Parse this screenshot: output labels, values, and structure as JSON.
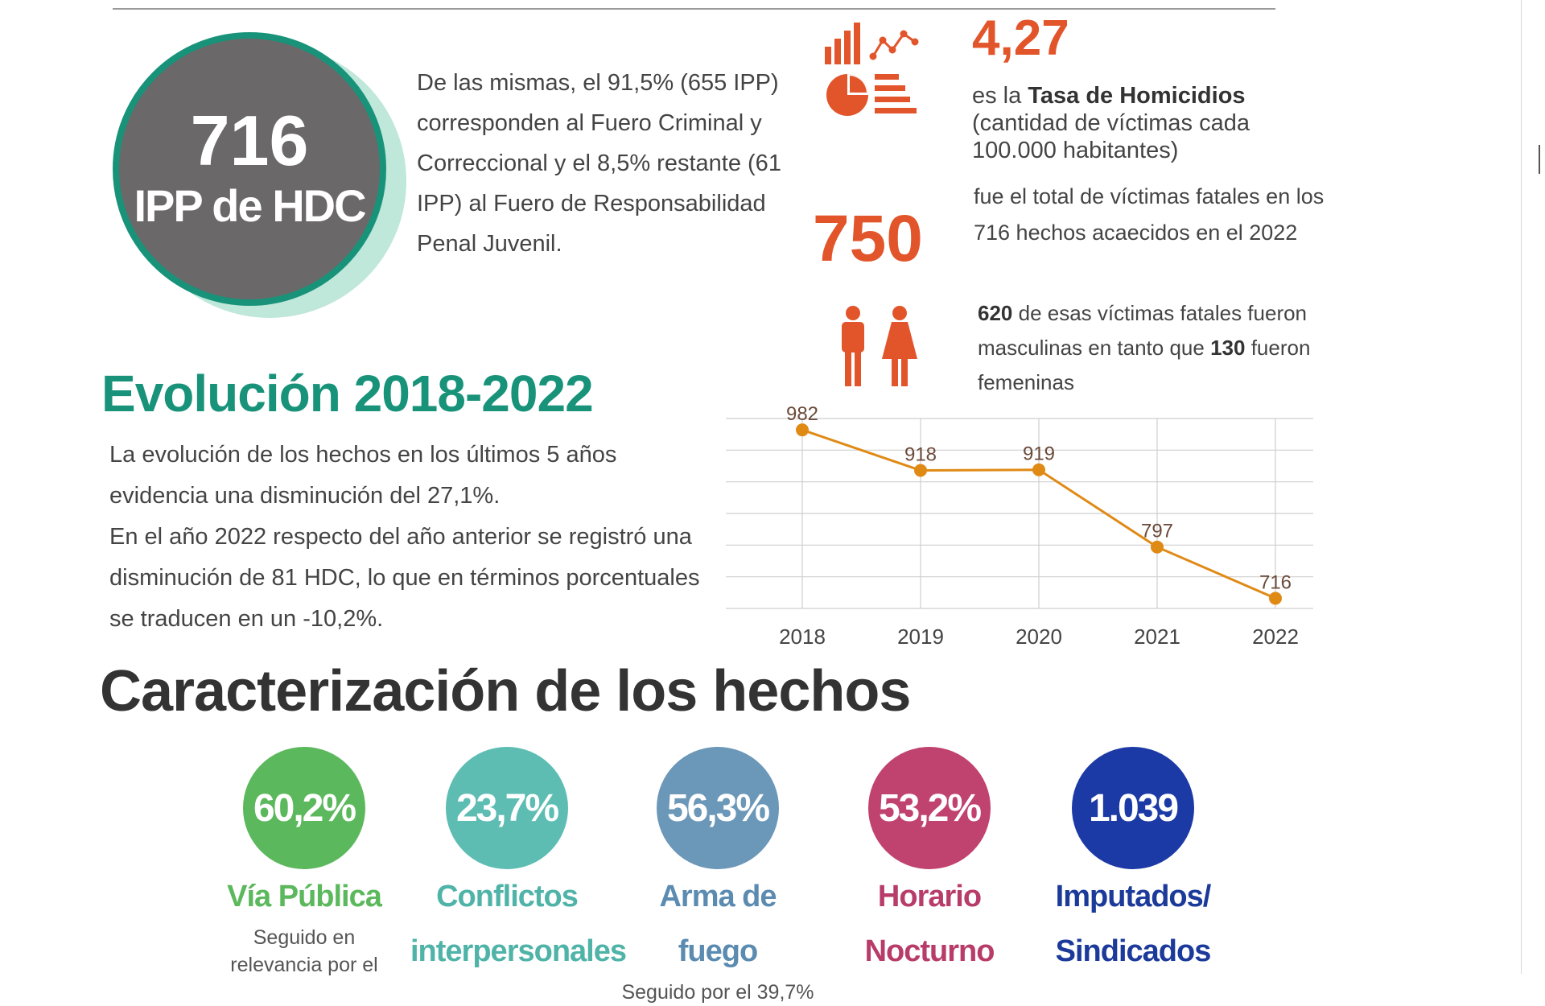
{
  "circle": {
    "number": "716",
    "label": "IPP de HDC"
  },
  "intro_text": "De las mismas, el 91,5% (655 IPP) corresponden al Fuero Criminal y Correccional y el 8,5% restante (61 IPP) al Fuero de Responsabilidad Penal Juvenil.",
  "homicide_rate": {
    "value": "4,27",
    "prefix": "es la ",
    "bold": "Tasa de Homicidios",
    "suffix": "(cantidad de víctimas cada 100.000 habitantes)"
  },
  "victims": {
    "value": "750",
    "text": "fue el total de víctimas fatales en los 716 hechos acaecidos en el 2022"
  },
  "gender": {
    "male_count": "620",
    "text_1": " de esas víctimas fatales fueron masculinas en tanto que ",
    "female_count": "130",
    "text_2": " fueron femeninas"
  },
  "evolution": {
    "title": "Evolución 2018-2022",
    "line1": "La evolución de los hechos en los últimos 5 años evidencia una disminución del 27,1%.",
    "line2": "En el año 2022 respecto del año anterior se registró una disminución de 81 HDC, lo que en términos porcentuales se traducen en un -10,2%."
  },
  "chart_data": {
    "type": "line",
    "categories": [
      "2018",
      "2019",
      "2020",
      "2021",
      "2022"
    ],
    "series": [
      {
        "values": [
          982,
          918,
          919,
          797,
          716
        ]
      }
    ],
    "data_labels": [
      "982",
      "918",
      "919",
      "797",
      "716"
    ],
    "ylim": [
      700,
      1000
    ],
    "grid": true,
    "color": "#e08a16"
  },
  "characterization": {
    "title": "Caracterización de los hechos",
    "items": [
      {
        "value": "60,2%",
        "label": "Vía Pública",
        "sub": "Seguido en relevancia por el",
        "color": "#5cb85c",
        "label_color": "#5cb85c"
      },
      {
        "value": "23,7%",
        "label": "Conflictos interpersonales",
        "sub": "",
        "color": "#5dbdb3",
        "label_color": "#4fb3a8"
      },
      {
        "value": "56,3%",
        "label": "Arma de fuego",
        "sub": "Seguido por el 39,7%",
        "color": "#6b97b8",
        "label_color": "#5b8bb0"
      },
      {
        "value": "53,2%",
        "label": "Horario Nocturno",
        "sub": "",
        "color": "#c0426f",
        "label_color": "#b83c6a"
      },
      {
        "value": "1.039",
        "label": "Imputados/ Sindicados",
        "sub": "",
        "color": "#1c3aa5",
        "label_color": "#1c3a9a"
      }
    ]
  },
  "icons": [
    "bar-chart-icon",
    "line-trend-icon",
    "pie-chart-icon",
    "list-icon",
    "male-person-icon",
    "female-person-icon"
  ]
}
